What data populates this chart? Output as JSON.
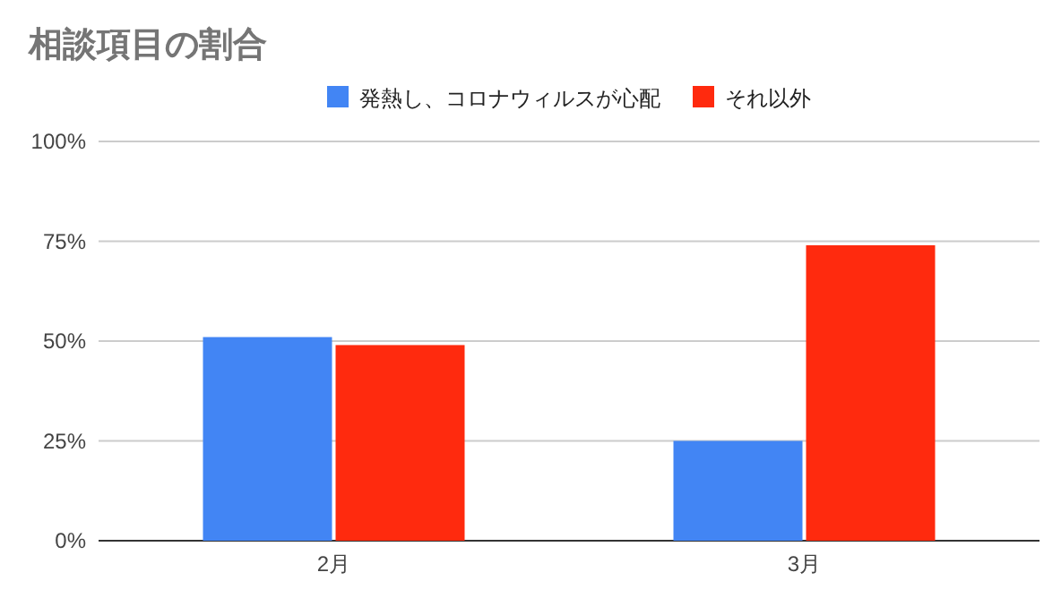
{
  "chart_data": {
    "type": "bar",
    "title": "相談項目の割合",
    "categories": [
      "2月",
      "3月"
    ],
    "series": [
      {
        "name": "発熱し、コロナウィルスが心配",
        "color": "#4285f4",
        "values": [
          51,
          25
        ]
      },
      {
        "name": "それ以外",
        "color": "#ff2a0e",
        "values": [
          49,
          74
        ]
      }
    ],
    "ylim": [
      0,
      100
    ],
    "yticks": [
      {
        "value": 0,
        "label": "0%"
      },
      {
        "value": 25,
        "label": "25%"
      },
      {
        "value": 50,
        "label": "50%"
      },
      {
        "value": 75,
        "label": "75%"
      },
      {
        "value": 100,
        "label": "100%"
      }
    ],
    "grid": "y",
    "legend": "top"
  }
}
